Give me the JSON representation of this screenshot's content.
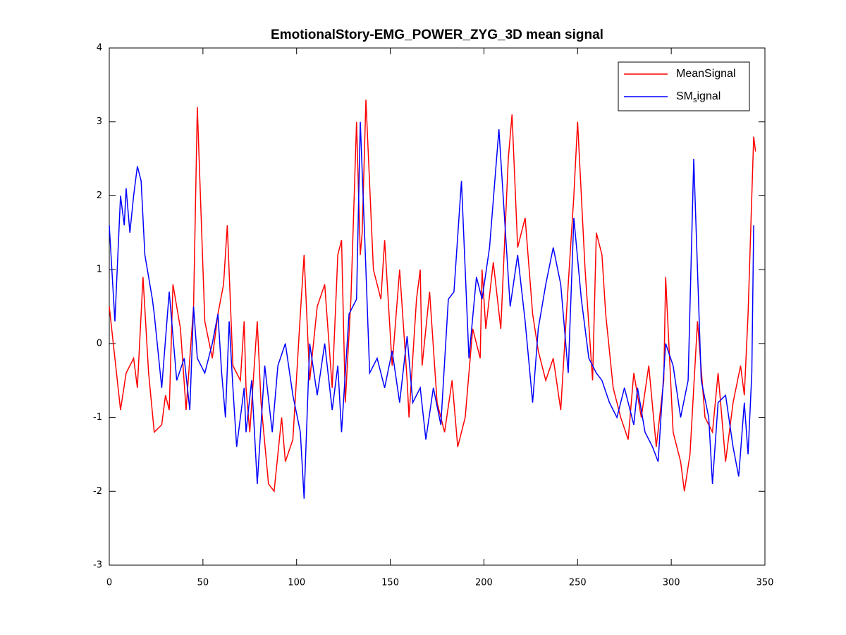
{
  "chart_data": {
    "type": "line",
    "title": "EmotionalStory-EMG_POWER_ZYG_3D mean signal",
    "xlim": [
      0,
      350
    ],
    "xticks": [
      0,
      50,
      100,
      150,
      200,
      250,
      300,
      350
    ],
    "ylim": [
      -3,
      4
    ],
    "yticks": [
      -3,
      -2,
      -1,
      0,
      1,
      2,
      3,
      4
    ],
    "grid": false,
    "legend": "upper right",
    "series": [
      {
        "name": "MeanSignal",
        "color": "#ff0000",
        "x": [
          0,
          6,
          9,
          13,
          15,
          18,
          21,
          24,
          28,
          30,
          32,
          34,
          38,
          41,
          45,
          47,
          51,
          55,
          58,
          61,
          63,
          66,
          70,
          72,
          73,
          75,
          79,
          81,
          85,
          88,
          92,
          94,
          98,
          102,
          104,
          107,
          111,
          115,
          119,
          122,
          124,
          126,
          129,
          132,
          134,
          135,
          137,
          141,
          145,
          147,
          151,
          155,
          159,
          160,
          164,
          166,
          167,
          171,
          175,
          179,
          183,
          186,
          190,
          194,
          198,
          199,
          201,
          205,
          209,
          213,
          215,
          218,
          222,
          226,
          229,
          233,
          237,
          241,
          245,
          248,
          250,
          254,
          258,
          260,
          263,
          265,
          269,
          273,
          277,
          280,
          284,
          288,
          292,
          296,
          297,
          301,
          305,
          307,
          310,
          314,
          318,
          322,
          325,
          329,
          333,
          337,
          339,
          341,
          344,
          345
        ],
        "values": [
          0.5,
          -0.9,
          -0.4,
          -0.2,
          -0.6,
          0.9,
          -0.4,
          -1.2,
          -1.1,
          -0.7,
          -0.9,
          0.8,
          0.2,
          -0.9,
          0.5,
          3.2,
          0.3,
          -0.2,
          0.4,
          0.8,
          1.6,
          -0.3,
          -0.5,
          0.3,
          -0.6,
          -1.2,
          0.3,
          -0.8,
          -1.9,
          -2.0,
          -1.0,
          -1.6,
          -1.3,
          0.4,
          1.2,
          -0.5,
          0.5,
          0.8,
          -0.6,
          1.2,
          1.4,
          -0.8,
          0.6,
          3.0,
          1.2,
          1.5,
          3.3,
          1.0,
          0.6,
          1.4,
          -0.3,
          1.0,
          -0.5,
          -1.0,
          0.6,
          1.0,
          -0.3,
          0.7,
          -0.8,
          -1.2,
          -0.5,
          -1.4,
          -1.0,
          0.2,
          -0.2,
          1.0,
          0.2,
          1.1,
          0.2,
          2.5,
          3.1,
          1.3,
          1.7,
          0.4,
          -0.1,
          -0.5,
          -0.2,
          -0.9,
          0.8,
          2.0,
          3.0,
          1.0,
          -0.5,
          1.5,
          1.2,
          0.4,
          -0.6,
          -1.0,
          -1.3,
          -0.4,
          -1.0,
          -0.3,
          -1.4,
          -0.5,
          0.9,
          -1.2,
          -1.6,
          -2.0,
          -1.5,
          0.3,
          -1.0,
          -1.2,
          -0.4,
          -1.6,
          -0.8,
          -0.3,
          -0.7,
          0.4,
          2.8,
          2.6
        ]
      },
      {
        "name": "SM_signal",
        "color": "#0000ff",
        "x": [
          0,
          3,
          6,
          8,
          9,
          11,
          13,
          15,
          17,
          19,
          23,
          24,
          28,
          32,
          36,
          40,
          43,
          45,
          47,
          51,
          55,
          58,
          60,
          62,
          64,
          66,
          68,
          72,
          73,
          76,
          79,
          83,
          87,
          90,
          94,
          98,
          102,
          104,
          107,
          111,
          115,
          119,
          122,
          124,
          128,
          132,
          134,
          137,
          139,
          143,
          147,
          151,
          155,
          159,
          162,
          166,
          169,
          173,
          177,
          181,
          184,
          188,
          192,
          196,
          199,
          203,
          208,
          211,
          214,
          218,
          222,
          226,
          229,
          233,
          237,
          241,
          245,
          248,
          252,
          256,
          260,
          263,
          267,
          271,
          275,
          280,
          282,
          286,
          290,
          293,
          297,
          301,
          305,
          309,
          312,
          316,
          320,
          322,
          325,
          329,
          333,
          336,
          339,
          341,
          343,
          344
        ],
        "values": [
          1.6,
          0.3,
          2.0,
          1.6,
          2.1,
          1.5,
          2.0,
          2.4,
          2.2,
          1.2,
          0.6,
          0.4,
          -0.6,
          0.7,
          -0.5,
          -0.2,
          -0.9,
          0.5,
          -0.2,
          -0.4,
          0.0,
          0.4,
          -0.4,
          -1.0,
          0.3,
          -0.6,
          -1.4,
          -0.6,
          -1.2,
          -0.5,
          -1.9,
          -0.3,
          -1.2,
          -0.3,
          0.0,
          -0.7,
          -1.2,
          -2.1,
          0.0,
          -0.7,
          0.0,
          -0.9,
          -0.3,
          -1.2,
          0.4,
          0.6,
          3.0,
          1.0,
          -0.4,
          -0.2,
          -0.6,
          -0.1,
          -0.8,
          0.1,
          -0.8,
          -0.6,
          -1.3,
          -0.6,
          -1.1,
          0.6,
          0.7,
          2.2,
          -0.2,
          0.9,
          0.6,
          1.3,
          2.9,
          1.7,
          0.5,
          1.2,
          0.3,
          -0.8,
          0.2,
          0.8,
          1.3,
          0.8,
          -0.4,
          1.7,
          0.6,
          -0.2,
          -0.4,
          -0.5,
          -0.8,
          -1.0,
          -0.6,
          -1.1,
          -0.6,
          -1.2,
          -1.4,
          -1.6,
          0.0,
          -0.3,
          -1.0,
          -0.5,
          2.5,
          -0.5,
          -1.0,
          -1.9,
          -0.8,
          -0.7,
          -1.4,
          -1.8,
          -0.8,
          -1.5,
          -0.4,
          1.6
        ]
      }
    ]
  }
}
